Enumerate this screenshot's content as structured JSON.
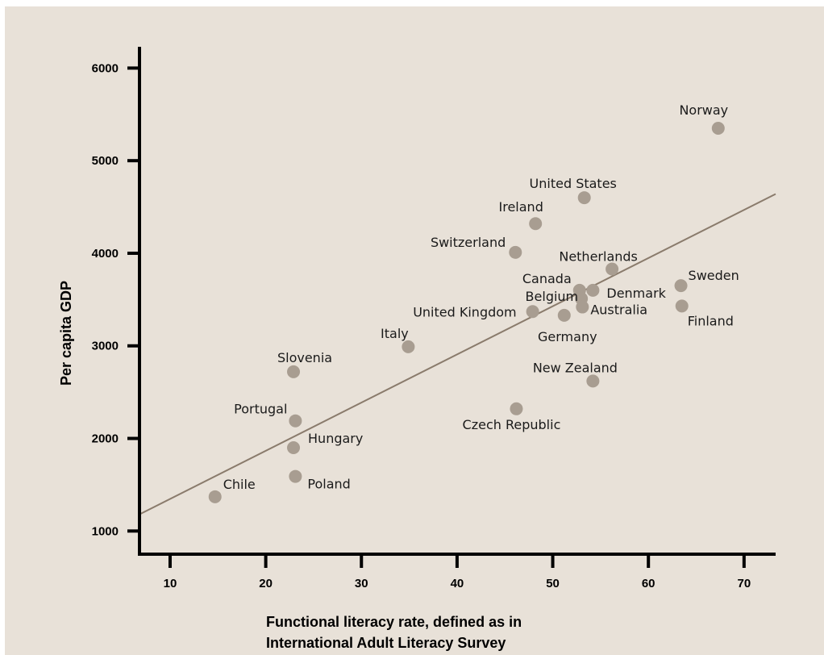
{
  "colors": {
    "background": "#e8e1d8",
    "marker": "#a89d91",
    "trendline": "#8a7b6c",
    "axis": "#000000"
  },
  "chart_data": {
    "type": "scatter",
    "title": "",
    "xlabel": "Functional literacy rate, defined as in International Adult Literacy Survey",
    "xlabel_lines": [
      "Functional literacy rate, defined as in",
      "International Adult Literacy Survey"
    ],
    "ylabel": "Per capita GDP",
    "xlim": [
      6.8,
      73.3
    ],
    "ylim": [
      750,
      6230
    ],
    "xticks": [
      10,
      20,
      30,
      40,
      50,
      60,
      70
    ],
    "yticks": [
      1000,
      2000,
      3000,
      4000,
      5000,
      6000
    ],
    "grid": false,
    "legend": "none",
    "points": [
      {
        "label": "Norway",
        "x": 67.3,
        "y": 5350
      },
      {
        "label": "United States",
        "x": 53.3,
        "y": 4600
      },
      {
        "label": "Ireland",
        "x": 48.2,
        "y": 4320
      },
      {
        "label": "Switzerland",
        "x": 46.1,
        "y": 4010
      },
      {
        "label": "Netherlands",
        "x": 56.2,
        "y": 3830
      },
      {
        "label": "Sweden",
        "x": 63.4,
        "y": 3650
      },
      {
        "label": "Canada",
        "x": 52.8,
        "y": 3600
      },
      {
        "label": "Denmark",
        "x": 54.2,
        "y": 3600
      },
      {
        "label": "Belgium",
        "x": 53.0,
        "y": 3510
      },
      {
        "label": "Finland",
        "x": 63.5,
        "y": 3430
      },
      {
        "label": "Australia",
        "x": 53.1,
        "y": 3420
      },
      {
        "label": "United Kingdom",
        "x": 47.9,
        "y": 3370
      },
      {
        "label": "Germany",
        "x": 51.2,
        "y": 3330
      },
      {
        "label": "Italy",
        "x": 34.9,
        "y": 2990
      },
      {
        "label": "Slovenia",
        "x": 22.9,
        "y": 2720
      },
      {
        "label": "New Zealand",
        "x": 54.2,
        "y": 2620
      },
      {
        "label": "Czech Republic",
        "x": 46.2,
        "y": 2320
      },
      {
        "label": "Portugal",
        "x": 23.1,
        "y": 2190
      },
      {
        "label": "Hungary",
        "x": 22.9,
        "y": 1900
      },
      {
        "label": "Poland",
        "x": 23.1,
        "y": 1590
      },
      {
        "label": "Chile",
        "x": 14.7,
        "y": 1370
      }
    ],
    "trendline": {
      "x": [
        6.8,
        73.3
      ],
      "y": [
        1180,
        4640
      ]
    }
  }
}
